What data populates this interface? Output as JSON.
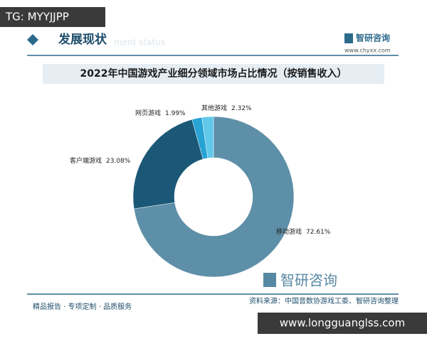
{
  "overlay_top": "TG: MYYJJPP",
  "header": {
    "title": "发展现状",
    "subtitle": "ment status",
    "brand": "智研咨询",
    "url": "www.chyxx.com"
  },
  "chart_data": {
    "type": "donut",
    "title": "2022年中国游戏产业细分领域市场占比情况（按销售收入）",
    "categories": [
      "移动游戏",
      "客户端游戏",
      "网页游戏",
      "其他游戏"
    ],
    "values": [
      72.61,
      23.08,
      1.99,
      2.32
    ],
    "value_labels": [
      "72.61%",
      "23.08%",
      "1.99%",
      "2.32%"
    ],
    "colors": [
      "#5e8fa8",
      "#1b5877",
      "#27a3d4",
      "#62c8ea"
    ]
  },
  "source": "资料来源：中国音数协游戏工委、智研咨询整理",
  "tagline": "精品报告 · 专项定制 · 品质服务",
  "watermark": "智研咨询",
  "overlay_bottom": "www.longguanglss.com"
}
